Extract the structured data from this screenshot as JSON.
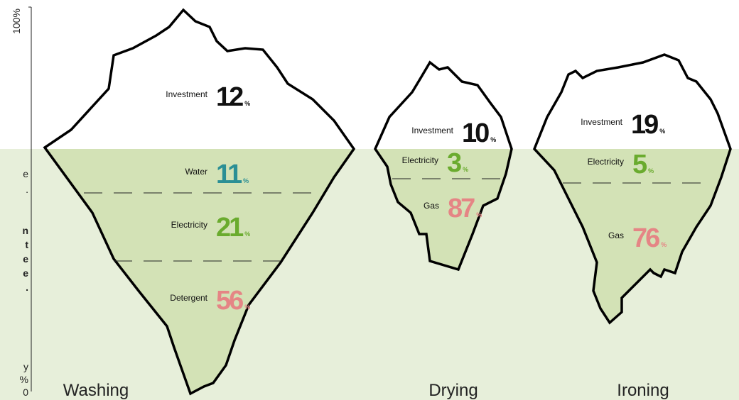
{
  "axis_label": "100%",
  "sidebar": [
    "e",
    ".",
    "n",
    "t",
    "e",
    "e",
    ".",
    "y",
    "%",
    "0"
  ],
  "percent_sign": "%",
  "icebergs": [
    {
      "name": "Washing",
      "segments": [
        {
          "label": "Investment",
          "value": 12
        },
        {
          "label": "Water",
          "value": 11
        },
        {
          "label": "Electricity",
          "value": 21
        },
        {
          "label": "Detergent",
          "value": 56
        }
      ]
    },
    {
      "name": "Drying",
      "segments": [
        {
          "label": "Investment",
          "value": 10
        },
        {
          "label": "Electricity",
          "value": 3
        },
        {
          "label": "Gas",
          "value": 87
        }
      ]
    },
    {
      "name": "Ironing",
      "segments": [
        {
          "label": "Investment",
          "value": 19
        },
        {
          "label": "Electricity",
          "value": 5
        },
        {
          "label": "Gas",
          "value": 76
        }
      ]
    }
  ]
}
